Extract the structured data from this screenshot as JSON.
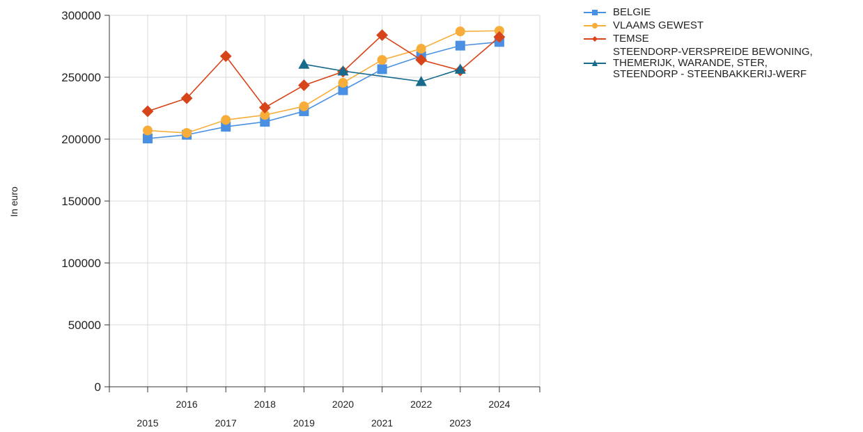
{
  "chart_data": {
    "type": "line",
    "ylabel": "In euro",
    "xlabel": "",
    "ylim": [
      0,
      300000
    ],
    "yticks": [
      0,
      50000,
      100000,
      150000,
      200000,
      250000,
      300000
    ],
    "x": [
      "2015",
      "2016",
      "2017",
      "2018",
      "2019",
      "2020",
      "2021",
      "2022",
      "2023",
      "2024"
    ],
    "grid": true,
    "legend_position": "top-right",
    "series": [
      {
        "name": "BELGIE",
        "color": "#4a90e2",
        "marker": "square",
        "values": [
          200500,
          203500,
          210000,
          214000,
          222500,
          239500,
          256500,
          267000,
          275500,
          278500
        ]
      },
      {
        "name": "VLAAMS GEWEST",
        "color": "#f7ad3a",
        "marker": "circle",
        "values": [
          207000,
          205000,
          215500,
          219500,
          226500,
          245500,
          264000,
          273000,
          287000,
          287500
        ]
      },
      {
        "name": "TEMSE",
        "color": "#d7441a",
        "marker": "diamond",
        "values": [
          222500,
          233000,
          267000,
          225500,
          243500,
          254500,
          284000,
          264000,
          255500,
          282500
        ]
      },
      {
        "name": "STEENDORP-VERSPREIDE BEWONING,\nTHEMERIJK, WARANDE, STER,\nSTEENDORP - STEENBAKKERIJ-WERF",
        "color": "#176a8c",
        "marker": "triangle",
        "values": [
          null,
          null,
          null,
          null,
          260500,
          255000,
          null,
          246500,
          256500,
          null
        ]
      }
    ]
  }
}
